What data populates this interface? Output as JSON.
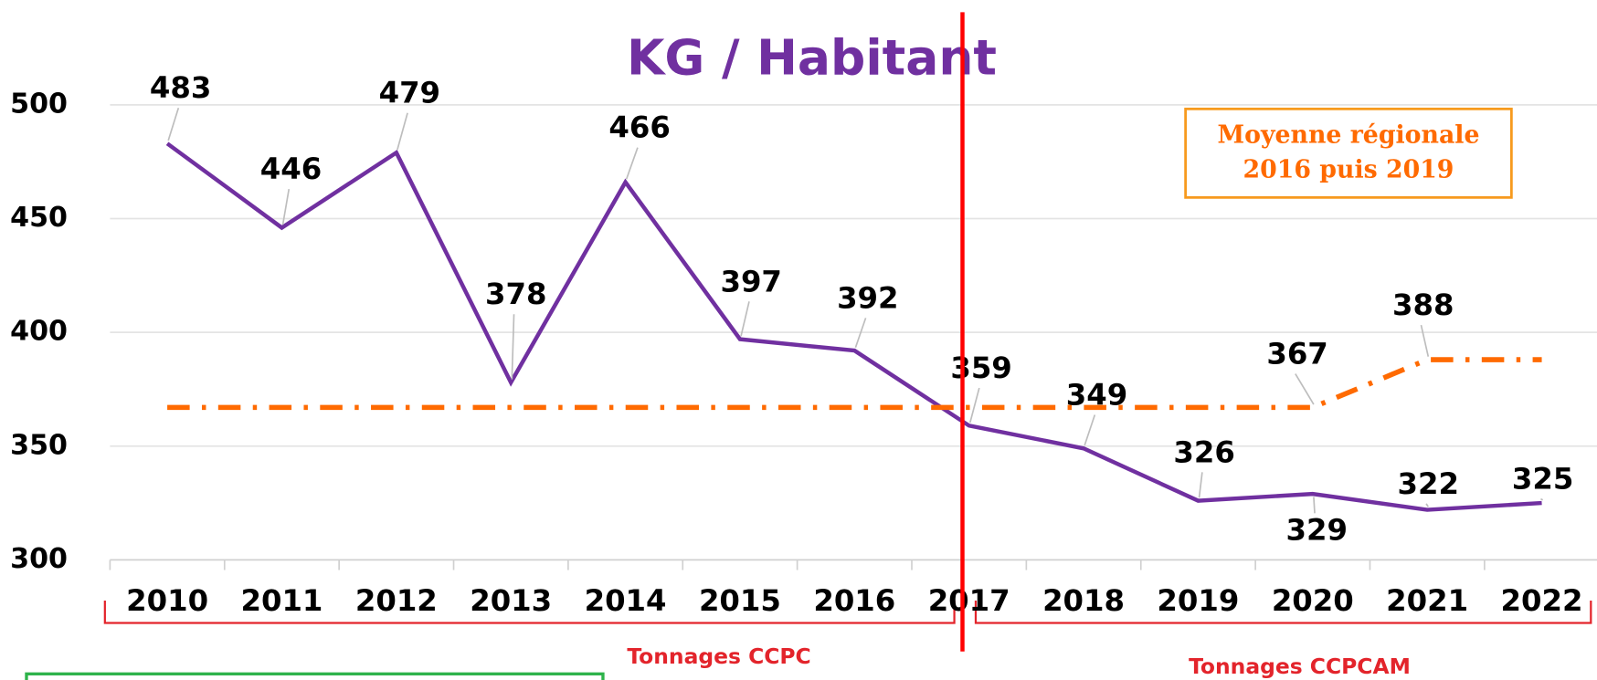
{
  "chart_data": {
    "type": "line",
    "title": "KG / Habitant",
    "categories": [
      "2010",
      "2011",
      "2012",
      "2013",
      "2014",
      "2015",
      "2016",
      "2017",
      "2018",
      "2019",
      "2020",
      "2021",
      "2022"
    ],
    "series": [
      {
        "name": "KG / Habitant",
        "color": "#7030a0",
        "style": "solid",
        "values": [
          483,
          446,
          479,
          378,
          466,
          397,
          392,
          359,
          349,
          326,
          329,
          322,
          325
        ]
      },
      {
        "name": "Moyenne régionale 2016 puis 2019",
        "color": "#ff6a00",
        "style": "dashdot",
        "values": [
          367,
          367,
          367,
          367,
          367,
          367,
          367,
          367,
          367,
          367,
          367,
          388,
          388
        ],
        "value_labels": [
          null,
          null,
          null,
          null,
          null,
          null,
          null,
          null,
          null,
          null,
          "367",
          "388",
          null
        ]
      }
    ],
    "ylim": [
      300,
      500
    ],
    "yticks": [
      300,
      350,
      400,
      450,
      500
    ],
    "grid": true,
    "annotations": {
      "legend_box": [
        "Moyenne régionale",
        "2016 puis 2019"
      ],
      "left_period": "Tonnages CCPC",
      "right_period": "Tonnages CCPCAM"
    }
  }
}
